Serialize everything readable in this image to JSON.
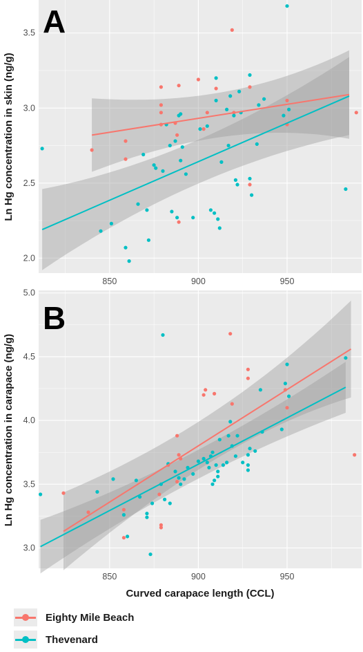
{
  "colors": {
    "eighty": "#f8766d",
    "thevenard": "#00bfc4",
    "panel": "#ebebeb",
    "grid": "#ffffff",
    "ribbon": "#999999"
  },
  "legend": {
    "items": [
      {
        "label": "Eighty Mile Beach",
        "color": "#f8766d"
      },
      {
        "label": "Thevenard",
        "color": "#00bfc4"
      }
    ]
  },
  "chart_data": [
    {
      "type": "scatter",
      "panel_label": "A",
      "ylabel": "Ln Hg concentration in skin (ng/g)",
      "xlabel": "",
      "xlim": [
        810,
        992
      ],
      "ylim": [
        1.9,
        3.72
      ],
      "x_ticks": [
        "850",
        "900",
        "950"
      ],
      "y_ticks": [
        "2.0",
        "2.5",
        "3.0",
        "3.5"
      ],
      "x_tick_values": [
        850,
        900,
        950
      ],
      "y_tick_values": [
        2.0,
        2.5,
        3.0,
        3.5
      ],
      "grid": true,
      "series": [
        {
          "name": "Eighty Mile Beach",
          "points": [
            [
              840,
              2.72
            ],
            [
              859,
              2.78
            ],
            [
              859,
              2.66
            ],
            [
              879,
              3.14
            ],
            [
              879,
              3.02
            ],
            [
              879,
              2.97
            ],
            [
              879,
              2.89
            ],
            [
              887,
              2.9
            ],
            [
              888,
              2.82
            ],
            [
              889,
              3.15
            ],
            [
              889,
              2.24
            ],
            [
              900,
              3.19
            ],
            [
              903,
              2.86
            ],
            [
              905,
              2.97
            ],
            [
              910,
              3.13
            ],
            [
              919,
              3.52
            ],
            [
              920,
              2.97
            ],
            [
              929,
              3.14
            ],
            [
              929,
              2.49
            ],
            [
              950,
              3.05
            ],
            [
              950,
              2.89
            ],
            [
              989,
              2.97
            ]
          ],
          "fit": {
            "x": [
              840,
              985
            ],
            "y": [
              2.82,
              3.09
            ],
            "ci_low": [
              2.58,
              2.82
            ],
            "ci_high": [
              3.07,
              3.41
            ]
          }
        },
        {
          "name": "Thevenard",
          "points": [
            [
              812,
              2.73
            ],
            [
              845,
              2.18
            ],
            [
              851,
              2.23
            ],
            [
              859,
              2.07
            ],
            [
              861,
              1.98
            ],
            [
              866,
              2.36
            ],
            [
              869,
              2.69
            ],
            [
              871,
              2.32
            ],
            [
              872,
              2.12
            ],
            [
              875,
              2.62
            ],
            [
              876,
              2.6
            ],
            [
              880,
              2.58
            ],
            [
              882,
              2.89
            ],
            [
              884,
              2.75
            ],
            [
              885,
              2.31
            ],
            [
              887,
              2.78
            ],
            [
              888,
              2.27
            ],
            [
              889,
              2.95
            ],
            [
              890,
              2.96
            ],
            [
              890,
              2.65
            ],
            [
              891,
              2.74
            ],
            [
              893,
              2.56
            ],
            [
              897,
              2.27
            ],
            [
              901,
              2.86
            ],
            [
              905,
              2.88
            ],
            [
              907,
              2.32
            ],
            [
              909,
              2.3
            ],
            [
              910,
              3.2
            ],
            [
              910,
              3.05
            ],
            [
              911,
              2.26
            ],
            [
              912,
              2.2
            ],
            [
              913,
              2.64
            ],
            [
              916,
              2.99
            ],
            [
              917,
              2.75
            ],
            [
              918,
              3.08
            ],
            [
              920,
              2.95
            ],
            [
              921,
              2.52
            ],
            [
              922,
              2.49
            ],
            [
              923,
              3.11
            ],
            [
              924,
              2.97
            ],
            [
              929,
              3.22
            ],
            [
              929,
              2.53
            ],
            [
              930,
              2.42
            ],
            [
              933,
              2.76
            ],
            [
              934,
              3.02
            ],
            [
              937,
              3.06
            ],
            [
              948,
              2.95
            ],
            [
              950,
              3.68
            ],
            [
              951,
              2.99
            ],
            [
              983,
              2.46
            ]
          ],
          "fit": {
            "x": [
              812,
              985
            ],
            "y": [
              2.19,
              3.08
            ],
            "ci_low": [
              1.92,
              2.82
            ],
            "ci_high": [
              2.46,
              3.34
            ]
          }
        }
      ]
    },
    {
      "type": "scatter",
      "panel_label": "B",
      "ylabel": "Ln Hg concentration in carapace (ng/g)",
      "xlabel": "Curved carapace length  (CCL)",
      "xlim": [
        810,
        992
      ],
      "ylim": [
        2.84,
        5.02
      ],
      "x_ticks": [
        "850",
        "900",
        "950"
      ],
      "y_ticks": [
        "3.0",
        "3.5",
        "4.0",
        "4.5",
        "5.0"
      ],
      "x_tick_values": [
        850,
        900,
        950
      ],
      "y_tick_values": [
        3.0,
        3.5,
        4.0,
        4.5,
        5.0
      ],
      "grid": true,
      "series": [
        {
          "name": "Eighty Mile Beach",
          "points": [
            [
              824,
              3.43
            ],
            [
              838,
              3.28
            ],
            [
              858,
              3.3
            ],
            [
              858,
              3.08
            ],
            [
              878,
              3.42
            ],
            [
              879,
              3.18
            ],
            [
              879,
              3.16
            ],
            [
              883,
              3.65
            ],
            [
              888,
              3.52
            ],
            [
              888,
              3.88
            ],
            [
              889,
              3.73
            ],
            [
              890,
              3.7
            ],
            [
              903,
              4.2
            ],
            [
              904,
              4.24
            ],
            [
              909,
              4.21
            ],
            [
              918,
              4.68
            ],
            [
              919,
              4.13
            ],
            [
              928,
              4.4
            ],
            [
              928,
              4.33
            ],
            [
              949,
              4.24
            ],
            [
              950,
              4.1
            ],
            [
              988,
              3.73
            ]
          ],
          "fit": {
            "x": [
              824,
              986
            ],
            "y": [
              3.13,
              4.56
            ],
            "ci_low": [
              2.82,
              4.18
            ],
            "ci_high": [
              3.43,
              4.94
            ]
          }
        },
        {
          "name": "Thevenard",
          "points": [
            [
              811,
              3.42
            ],
            [
              843,
              3.44
            ],
            [
              852,
              3.54
            ],
            [
              858,
              3.26
            ],
            [
              860,
              3.09
            ],
            [
              865,
              3.53
            ],
            [
              867,
              3.4
            ],
            [
              871,
              3.27
            ],
            [
              871,
              3.24
            ],
            [
              873,
              2.95
            ],
            [
              874,
              3.35
            ],
            [
              879,
              3.5
            ],
            [
              880,
              4.67
            ],
            [
              881,
              3.38
            ],
            [
              883,
              3.66
            ],
            [
              884,
              3.35
            ],
            [
              887,
              3.6
            ],
            [
              889,
              3.55
            ],
            [
              890,
              3.5
            ],
            [
              892,
              3.54
            ],
            [
              894,
              3.63
            ],
            [
              897,
              3.58
            ],
            [
              900,
              3.68
            ],
            [
              903,
              3.7
            ],
            [
              905,
              3.67
            ],
            [
              906,
              3.63
            ],
            [
              907,
              3.72
            ],
            [
              908,
              3.5
            ],
            [
              908,
              3.75
            ],
            [
              909,
              3.53
            ],
            [
              910,
              3.65
            ],
            [
              911,
              3.6
            ],
            [
              911,
              3.56
            ],
            [
              912,
              3.85
            ],
            [
              914,
              3.65
            ],
            [
              916,
              3.67
            ],
            [
              917,
              3.88
            ],
            [
              918,
              3.99
            ],
            [
              919,
              3.8
            ],
            [
              921,
              3.72
            ],
            [
              922,
              3.88
            ],
            [
              925,
              3.67
            ],
            [
              928,
              3.73
            ],
            [
              928,
              3.65
            ],
            [
              928,
              3.61
            ],
            [
              929,
              3.78
            ],
            [
              932,
              3.76
            ],
            [
              935,
              4.24
            ],
            [
              936,
              3.91
            ],
            [
              947,
              3.93
            ],
            [
              949,
              4.29
            ],
            [
              950,
              4.44
            ],
            [
              951,
              4.19
            ],
            [
              983,
              4.49
            ]
          ],
          "fit": {
            "x": [
              811,
              983
            ],
            "y": [
              3.01,
              4.26
            ],
            "ci_low": [
              2.8,
              4.06
            ],
            "ci_high": [
              3.22,
              4.46
            ]
          }
        }
      ]
    }
  ]
}
